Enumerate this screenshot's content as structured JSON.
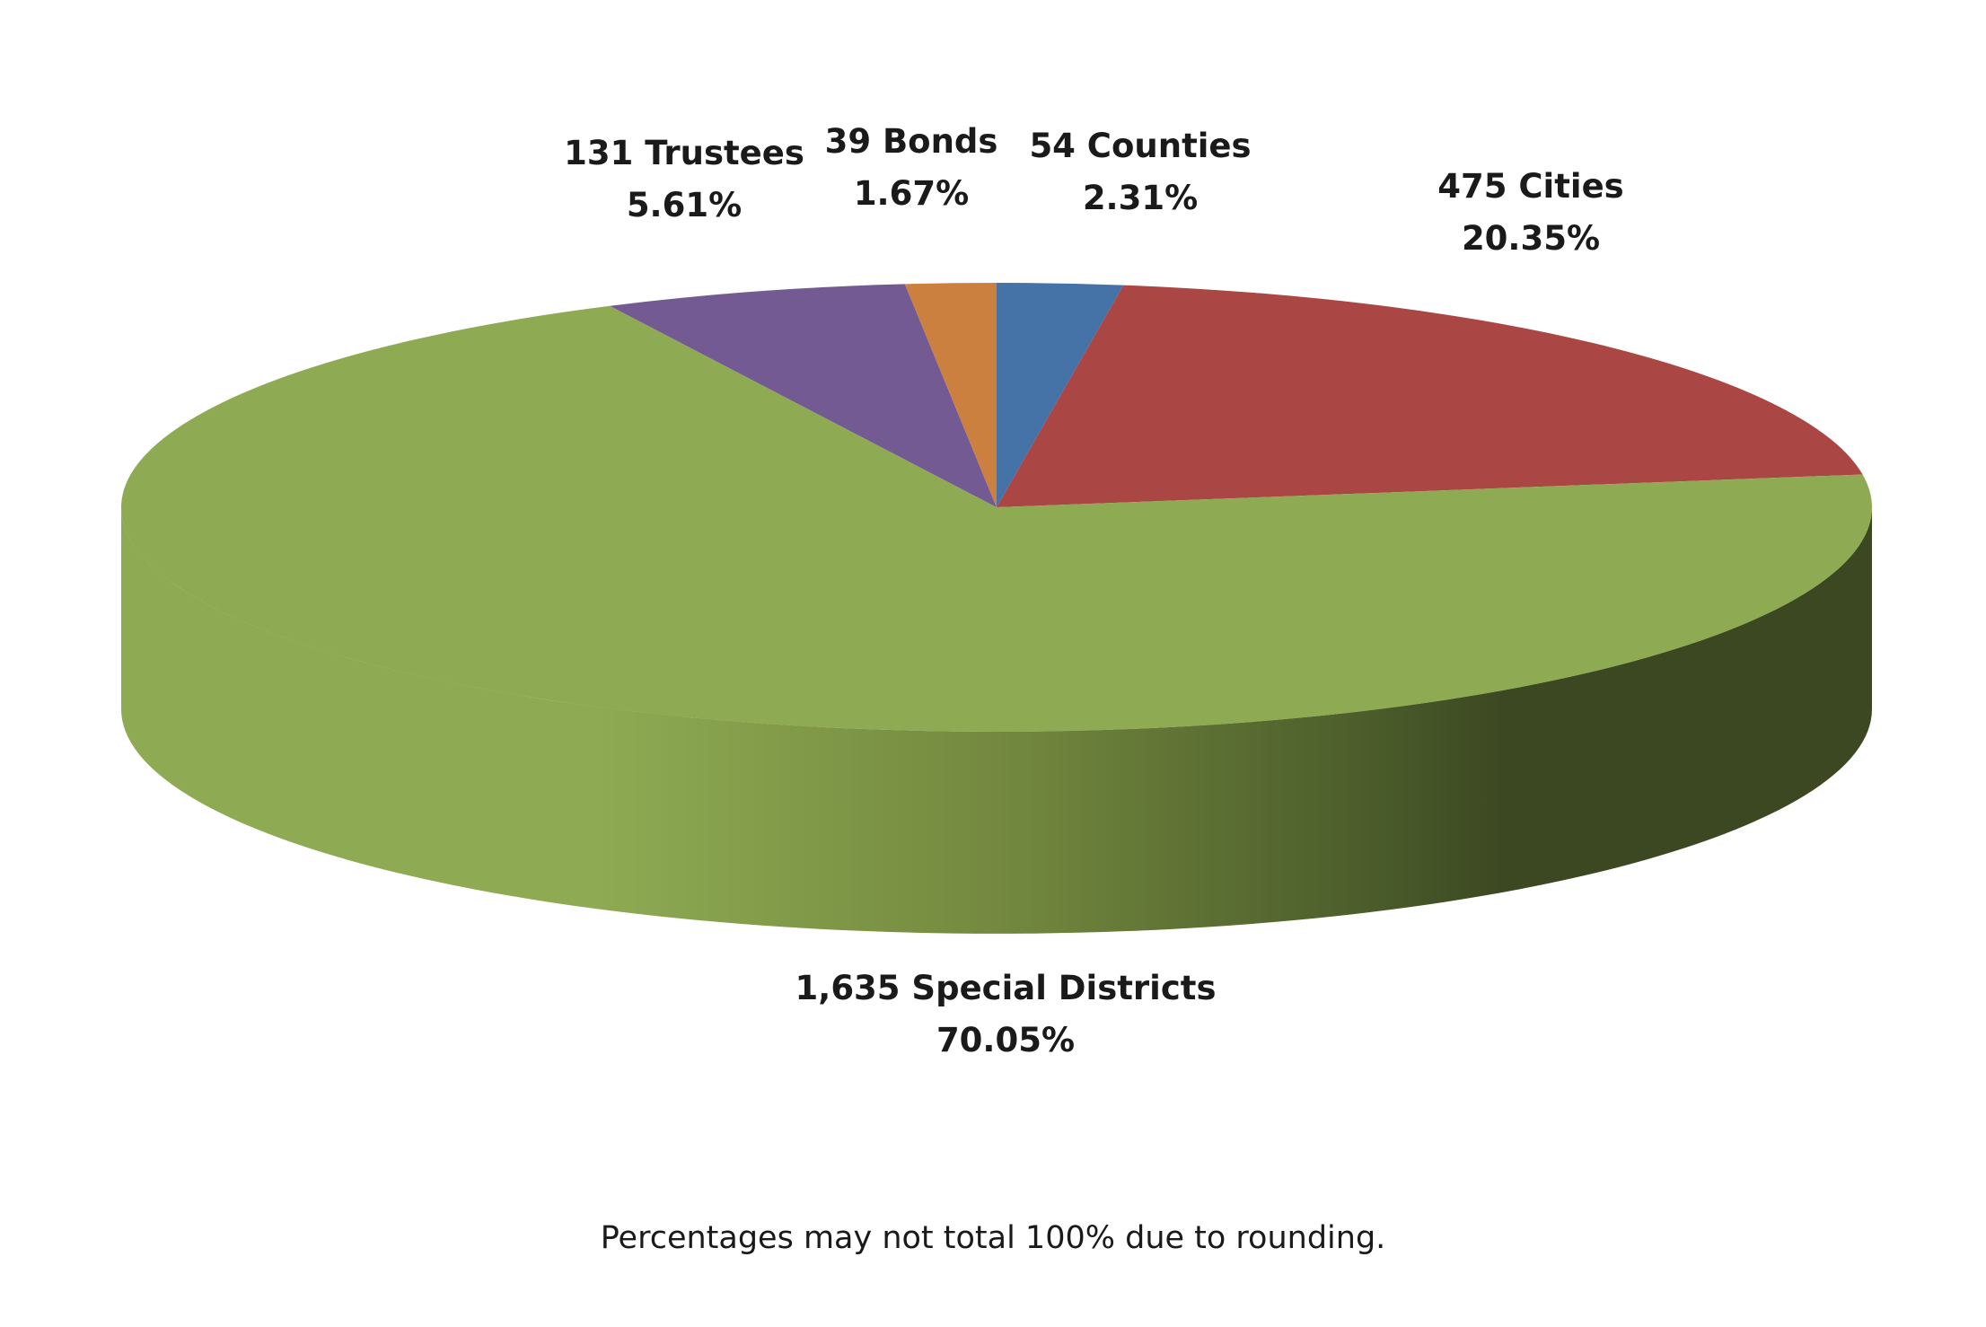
{
  "chart_data": {
    "type": "pie",
    "style": "3d",
    "unit": "count",
    "slices": [
      {
        "name": "Counties",
        "value": 54,
        "percent_label": "2.31%",
        "count_label": "54 Counties",
        "color": "#4572a7"
      },
      {
        "name": "Cities",
        "value": 475,
        "percent_label": "20.35%",
        "count_label": "475 Cities",
        "color": "#aa4643"
      },
      {
        "name": "Special Districts",
        "value": 1635,
        "percent_label": "70.05%",
        "count_label": "1,635 Special Districts",
        "color": "#8eab53"
      },
      {
        "name": "Trustees",
        "value": 131,
        "percent_label": "5.61%",
        "count_label": "131 Trustees",
        "color": "#745a93"
      },
      {
        "name": "Bonds",
        "value": 39,
        "percent_label": "1.67%",
        "count_label": "39 Bonds",
        "color": "#cc8040"
      }
    ],
    "footnote": "Percentages may not total 100% due to rounding.",
    "legend": "none"
  }
}
